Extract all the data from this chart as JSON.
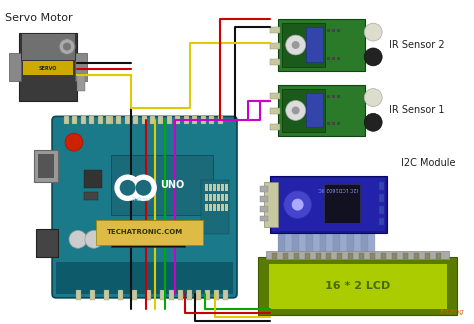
{
  "background_color": "#ffffff",
  "title": "Servo Motor",
  "title_fontsize": 8,
  "labels": {
    "ir2": "IR Sensor 2",
    "ir1": "IR Sensor 1",
    "i2c": "I2C Module",
    "lcd": "16 * 2 LCD",
    "arduino_brand": "TECHATRONIC.COM",
    "arduino_model": "UNO",
    "servo_label": "SERVO",
    "fritzing": "fritzing"
  },
  "colors": {
    "background": "#ffffff",
    "arduino_board": "#1a7a8a",
    "arduino_dark": "#0d5a6a",
    "servo_body": "#3a3a3a",
    "servo_top": "#707070",
    "servo_label_bg": "#ccaa00",
    "ir_board": "#2a7a2a",
    "ir_board_dark": "#1a5a1a",
    "ir_blue_chip": "#3344aa",
    "i2c_board": "#1a1a88",
    "i2c_trim": "#2222aa",
    "lcd_board": "#5a7a00",
    "lcd_screen": "#aacc00",
    "wire_black": "#111111",
    "wire_red": "#cc0000",
    "wire_yellow": "#ddcc00",
    "wire_magenta": "#cc00cc",
    "wire_green": "#00aa00",
    "ribbon_color": "#8899aa",
    "arduino_label_bg": "#ddbb44",
    "text_dark": "#222222",
    "reset_button": "#cc2200",
    "chip_black": "#111111",
    "pin_color": "#c8c8a0",
    "white": "#ffffff",
    "gray": "#888888",
    "light_gray": "#cccccc"
  }
}
